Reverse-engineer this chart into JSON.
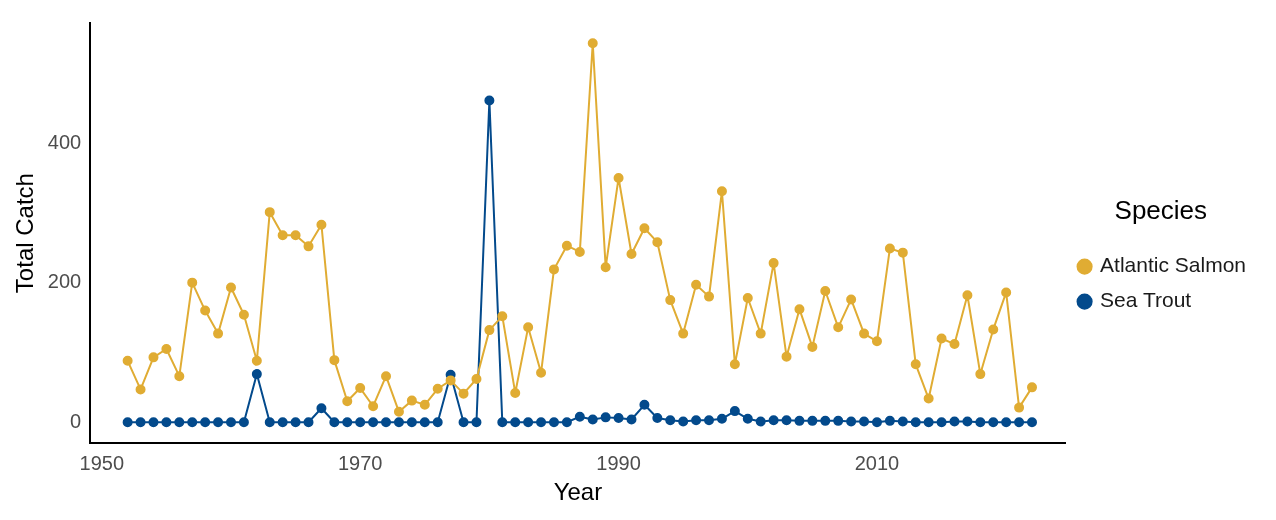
{
  "chart_data": {
    "type": "line",
    "xlabel": "Year",
    "ylabel": "Total Catch",
    "legend_title": "Species",
    "legend": "right",
    "grid": false,
    "marker": "circle",
    "line_style": "solid",
    "x": [
      1952,
      1953,
      1954,
      1955,
      1956,
      1957,
      1958,
      1959,
      1960,
      1961,
      1962,
      1963,
      1964,
      1965,
      1966,
      1967,
      1968,
      1969,
      1970,
      1971,
      1972,
      1973,
      1974,
      1975,
      1976,
      1977,
      1978,
      1979,
      1980,
      1981,
      1982,
      1983,
      1984,
      1985,
      1986,
      1987,
      1988,
      1989,
      1990,
      1991,
      1992,
      1993,
      1994,
      1995,
      1996,
      1997,
      1998,
      1999,
      2000,
      2001,
      2002,
      2003,
      2004,
      2005,
      2006,
      2007,
      2008,
      2009,
      2010,
      2011,
      2012,
      2013,
      2014,
      2015,
      2016,
      2017,
      2018,
      2019,
      2020,
      2021,
      2022
    ],
    "xlim": [
      1949.1,
      2024.6
    ],
    "xticks": [
      1950,
      1970,
      1990,
      2010
    ],
    "ylim": [
      -30,
      572
    ],
    "yticks": [
      0,
      200,
      400
    ],
    "series": [
      {
        "name": "Atlantic Salmon",
        "color": "#e0ac33",
        "values": [
          88,
          47,
          93,
          105,
          66,
          200,
          160,
          127,
          193,
          154,
          88,
          301,
          268,
          268,
          252,
          283,
          89,
          30,
          49,
          23,
          66,
          15,
          31,
          25,
          48,
          60,
          41,
          62,
          132,
          152,
          42,
          136,
          71,
          219,
          253,
          244,
          543,
          222,
          350,
          241,
          278,
          258,
          175,
          127,
          197,
          180,
          331,
          83,
          178,
          127,
          228,
          94,
          162,
          108,
          188,
          136,
          176,
          127,
          116,
          249,
          243,
          83,
          34,
          120,
          112,
          182,
          69,
          133,
          186,
          21,
          50
        ]
      },
      {
        "name": "Sea Trout",
        "color": "#034a8c",
        "values": [
          0,
          0,
          0,
          0,
          0,
          0,
          0,
          0,
          0,
          0,
          69,
          0,
          0,
          0,
          0,
          20,
          0,
          0,
          0,
          0,
          0,
          0,
          0,
          0,
          0,
          68,
          0,
          0,
          461,
          0,
          0,
          0,
          0,
          0,
          0,
          8,
          4,
          7,
          6,
          4,
          25,
          6,
          3,
          1,
          3,
          3,
          5,
          16,
          5,
          1,
          3,
          3,
          2,
          2,
          2,
          2,
          1,
          1,
          0,
          2,
          1,
          0,
          0,
          0,
          1,
          1,
          0,
          0,
          0,
          0,
          0
        ]
      }
    ]
  }
}
